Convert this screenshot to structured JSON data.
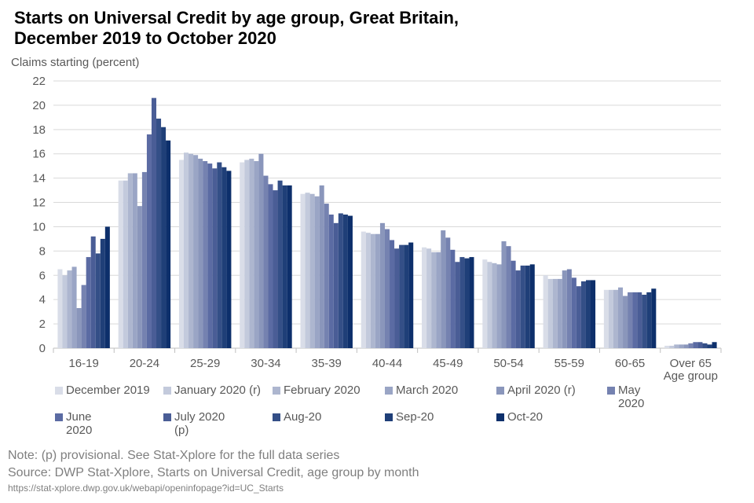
{
  "chart_data": {
    "type": "bar",
    "title": "Starts on Universal Credit by age group, Great Britain, December 2019 to October 2020",
    "y_label": "Claims starting (percent)",
    "x_label": "Age group",
    "categories": [
      "16-19",
      "20-24",
      "25-29",
      "30-34",
      "35-39",
      "40-44",
      "45-49",
      "50-54",
      "55-59",
      "60-65",
      "Over 65"
    ],
    "ylim": [
      0,
      22
    ],
    "yticks": [
      0,
      2,
      4,
      6,
      8,
      10,
      12,
      14,
      16,
      18,
      20,
      22
    ],
    "grid": true,
    "series": [
      {
        "name": "December 2019",
        "color": "#d9dde8",
        "values": [
          6.5,
          13.8,
          15.5,
          15.3,
          12.7,
          9.6,
          8.3,
          7.3,
          6.0,
          4.8,
          0.2
        ]
      },
      {
        "name": "January 2020 (r)",
        "color": "#c3cadc",
        "values": [
          6.0,
          13.8,
          16.1,
          15.5,
          12.8,
          9.5,
          8.2,
          7.1,
          5.7,
          4.8,
          0.2
        ]
      },
      {
        "name": "February 2020",
        "color": "#adb6cf",
        "values": [
          6.4,
          14.4,
          16.0,
          15.6,
          12.7,
          9.4,
          7.9,
          7.0,
          5.7,
          4.8,
          0.3
        ]
      },
      {
        "name": "March 2020",
        "color": "#9aa5c5",
        "values": [
          6.7,
          14.4,
          15.9,
          15.4,
          12.5,
          9.4,
          7.9,
          6.9,
          5.7,
          5.0,
          0.3
        ]
      },
      {
        "name": "April 2020 (r)",
        "color": "#8a96bb",
        "values": [
          3.3,
          11.7,
          15.6,
          16.0,
          13.4,
          10.3,
          9.7,
          8.8,
          6.4,
          4.3,
          0.3
        ]
      },
      {
        "name": "May 2020",
        "color": "#7582b0",
        "values": [
          5.2,
          14.5,
          15.4,
          14.2,
          11.9,
          9.8,
          9.1,
          8.4,
          6.5,
          4.6,
          0.4
        ]
      },
      {
        "name": "June 2020",
        "color": "#5b6ba3",
        "values": [
          7.5,
          17.6,
          15.2,
          13.5,
          11.0,
          8.9,
          8.1,
          7.2,
          5.8,
          4.6,
          0.5
        ]
      },
      {
        "name": "July 2020 (p)",
        "color": "#4a5d96",
        "values": [
          9.2,
          20.6,
          14.8,
          13.0,
          10.3,
          8.2,
          7.1,
          6.4,
          5.1,
          4.6,
          0.5
        ]
      },
      {
        "name": "Aug-20",
        "color": "#344f87",
        "values": [
          7.8,
          18.9,
          15.3,
          13.8,
          11.1,
          8.5,
          7.5,
          6.8,
          5.5,
          4.4,
          0.4
        ]
      },
      {
        "name": "Sep-20",
        "color": "#1f3f78",
        "values": [
          9.0,
          18.2,
          14.9,
          13.4,
          11.0,
          8.5,
          7.4,
          6.8,
          5.6,
          4.6,
          0.3
        ]
      },
      {
        "name": "Oct-20",
        "color": "#0d2f6b",
        "values": [
          10.0,
          17.1,
          14.6,
          13.4,
          10.9,
          8.7,
          7.5,
          6.9,
          5.6,
          4.9,
          0.5
        ]
      }
    ],
    "notes": [
      "Note: (p) provisional. See Stat-Xplore for the full data series",
      "Source: DWP Stat-Xplore, Starts on Universal Credit, age group by month",
      "https://stat-xplore.dwp.gov.uk/webapi/openinfopage?id=UC_Starts"
    ]
  }
}
